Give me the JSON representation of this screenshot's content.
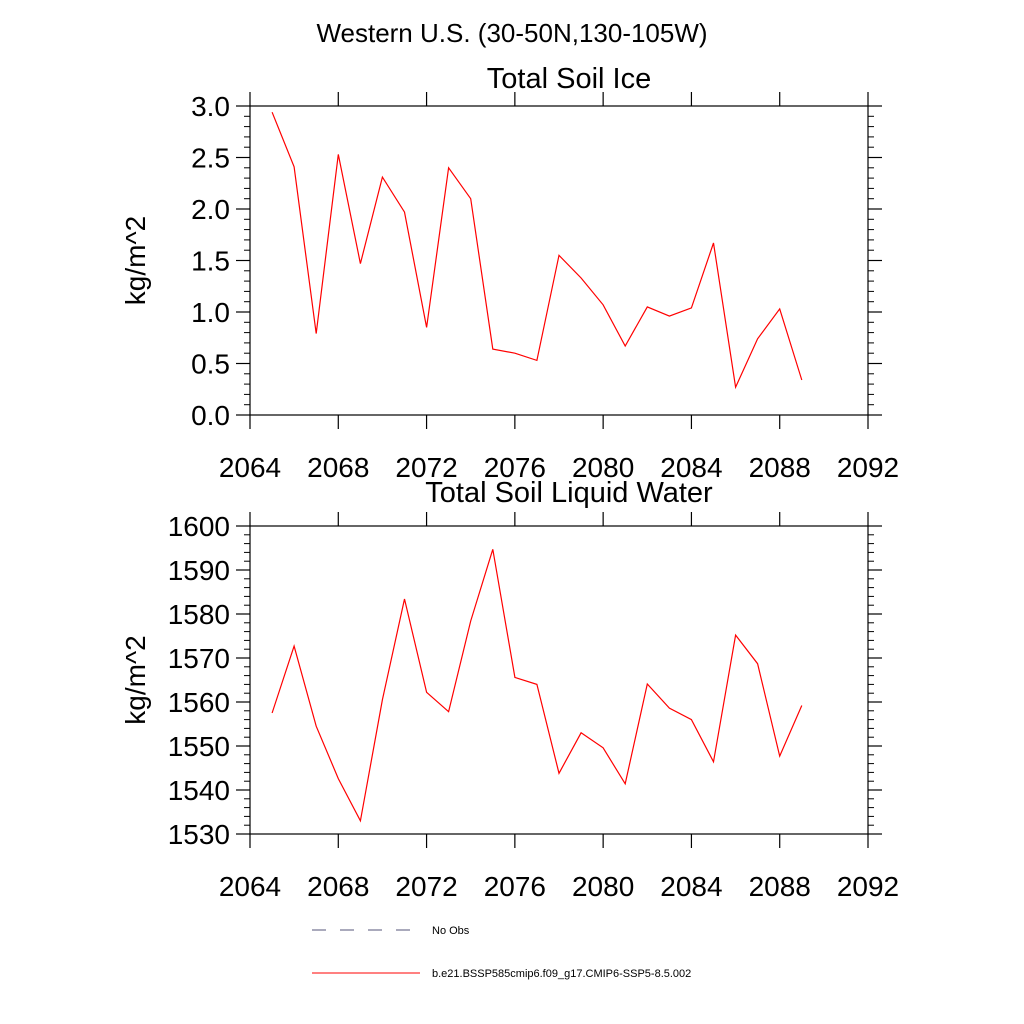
{
  "page_title": "Western U.S. (30-50N,130-105W)",
  "legend": {
    "items": [
      {
        "label": "No Obs",
        "style": "dashed",
        "color": "#55557a"
      },
      {
        "label": "b.e21.BSSP585cmip6.f09_g17.CMIP6-SSP5-8.5.002",
        "style": "solid",
        "color": "#ff0000"
      }
    ]
  },
  "chart_data": [
    {
      "type": "line",
      "title": "Total Soil Ice",
      "xlabel": "",
      "ylabel": "kg/m^2",
      "xlim": [
        2064,
        2092
      ],
      "ylim": [
        0,
        3
      ],
      "x_ticks": [
        "2064",
        "2068",
        "2072",
        "2076",
        "2080",
        "2084",
        "2088",
        "2092"
      ],
      "y_ticks": [
        "0.0",
        "0.5",
        "1.0",
        "1.5",
        "2.0",
        "2.5",
        "3.0"
      ],
      "grid": false,
      "series": [
        {
          "name": "b.e21.BSSP585cmip6.f09_g17.CMIP6-SSP5-8.5.002",
          "color": "#ff0000",
          "x": [
            2065,
            2066,
            2067,
            2068,
            2069,
            2070,
            2071,
            2072,
            2073,
            2074,
            2075,
            2076,
            2077,
            2078,
            2079,
            2080,
            2081,
            2082,
            2083,
            2084,
            2085,
            2086,
            2087,
            2088,
            2089
          ],
          "y": [
            2.94,
            2.41,
            0.79,
            2.53,
            1.47,
            2.31,
            1.97,
            0.85,
            2.4,
            2.1,
            0.64,
            0.6,
            0.53,
            1.55,
            1.33,
            1.07,
            0.67,
            1.05,
            0.96,
            1.04,
            1.67,
            0.27,
            0.74,
            1.03,
            0.34
          ]
        }
      ]
    },
    {
      "type": "line",
      "title": "Total Soil Liquid Water",
      "xlabel": "",
      "ylabel": "kg/m^2",
      "xlim": [
        2064,
        2092
      ],
      "ylim": [
        1530,
        1600
      ],
      "x_ticks": [
        "2064",
        "2068",
        "2072",
        "2076",
        "2080",
        "2084",
        "2088",
        "2092"
      ],
      "y_ticks": [
        "1530",
        "1540",
        "1550",
        "1560",
        "1570",
        "1580",
        "1590",
        "1600"
      ],
      "grid": false,
      "series": [
        {
          "name": "b.e21.BSSP585cmip6.f09_g17.CMIP6-SSP5-8.5.002",
          "color": "#ff0000",
          "x": [
            2065,
            2066,
            2067,
            2068,
            2069,
            2070,
            2071,
            2072,
            2073,
            2074,
            2075,
            2076,
            2077,
            2078,
            2079,
            2080,
            2081,
            2082,
            2083,
            2084,
            2085,
            2086,
            2087,
            2088,
            2089
          ],
          "y": [
            1557.5,
            1572.7,
            1554.5,
            1542.6,
            1533.0,
            1560.5,
            1583.4,
            1562.2,
            1557.8,
            1578.4,
            1594.7,
            1565.6,
            1564.0,
            1543.8,
            1553.0,
            1549.6,
            1541.4,
            1564.1,
            1558.6,
            1556.0,
            1546.4,
            1575.2,
            1568.7,
            1547.7,
            1559.2
          ]
        }
      ]
    }
  ]
}
